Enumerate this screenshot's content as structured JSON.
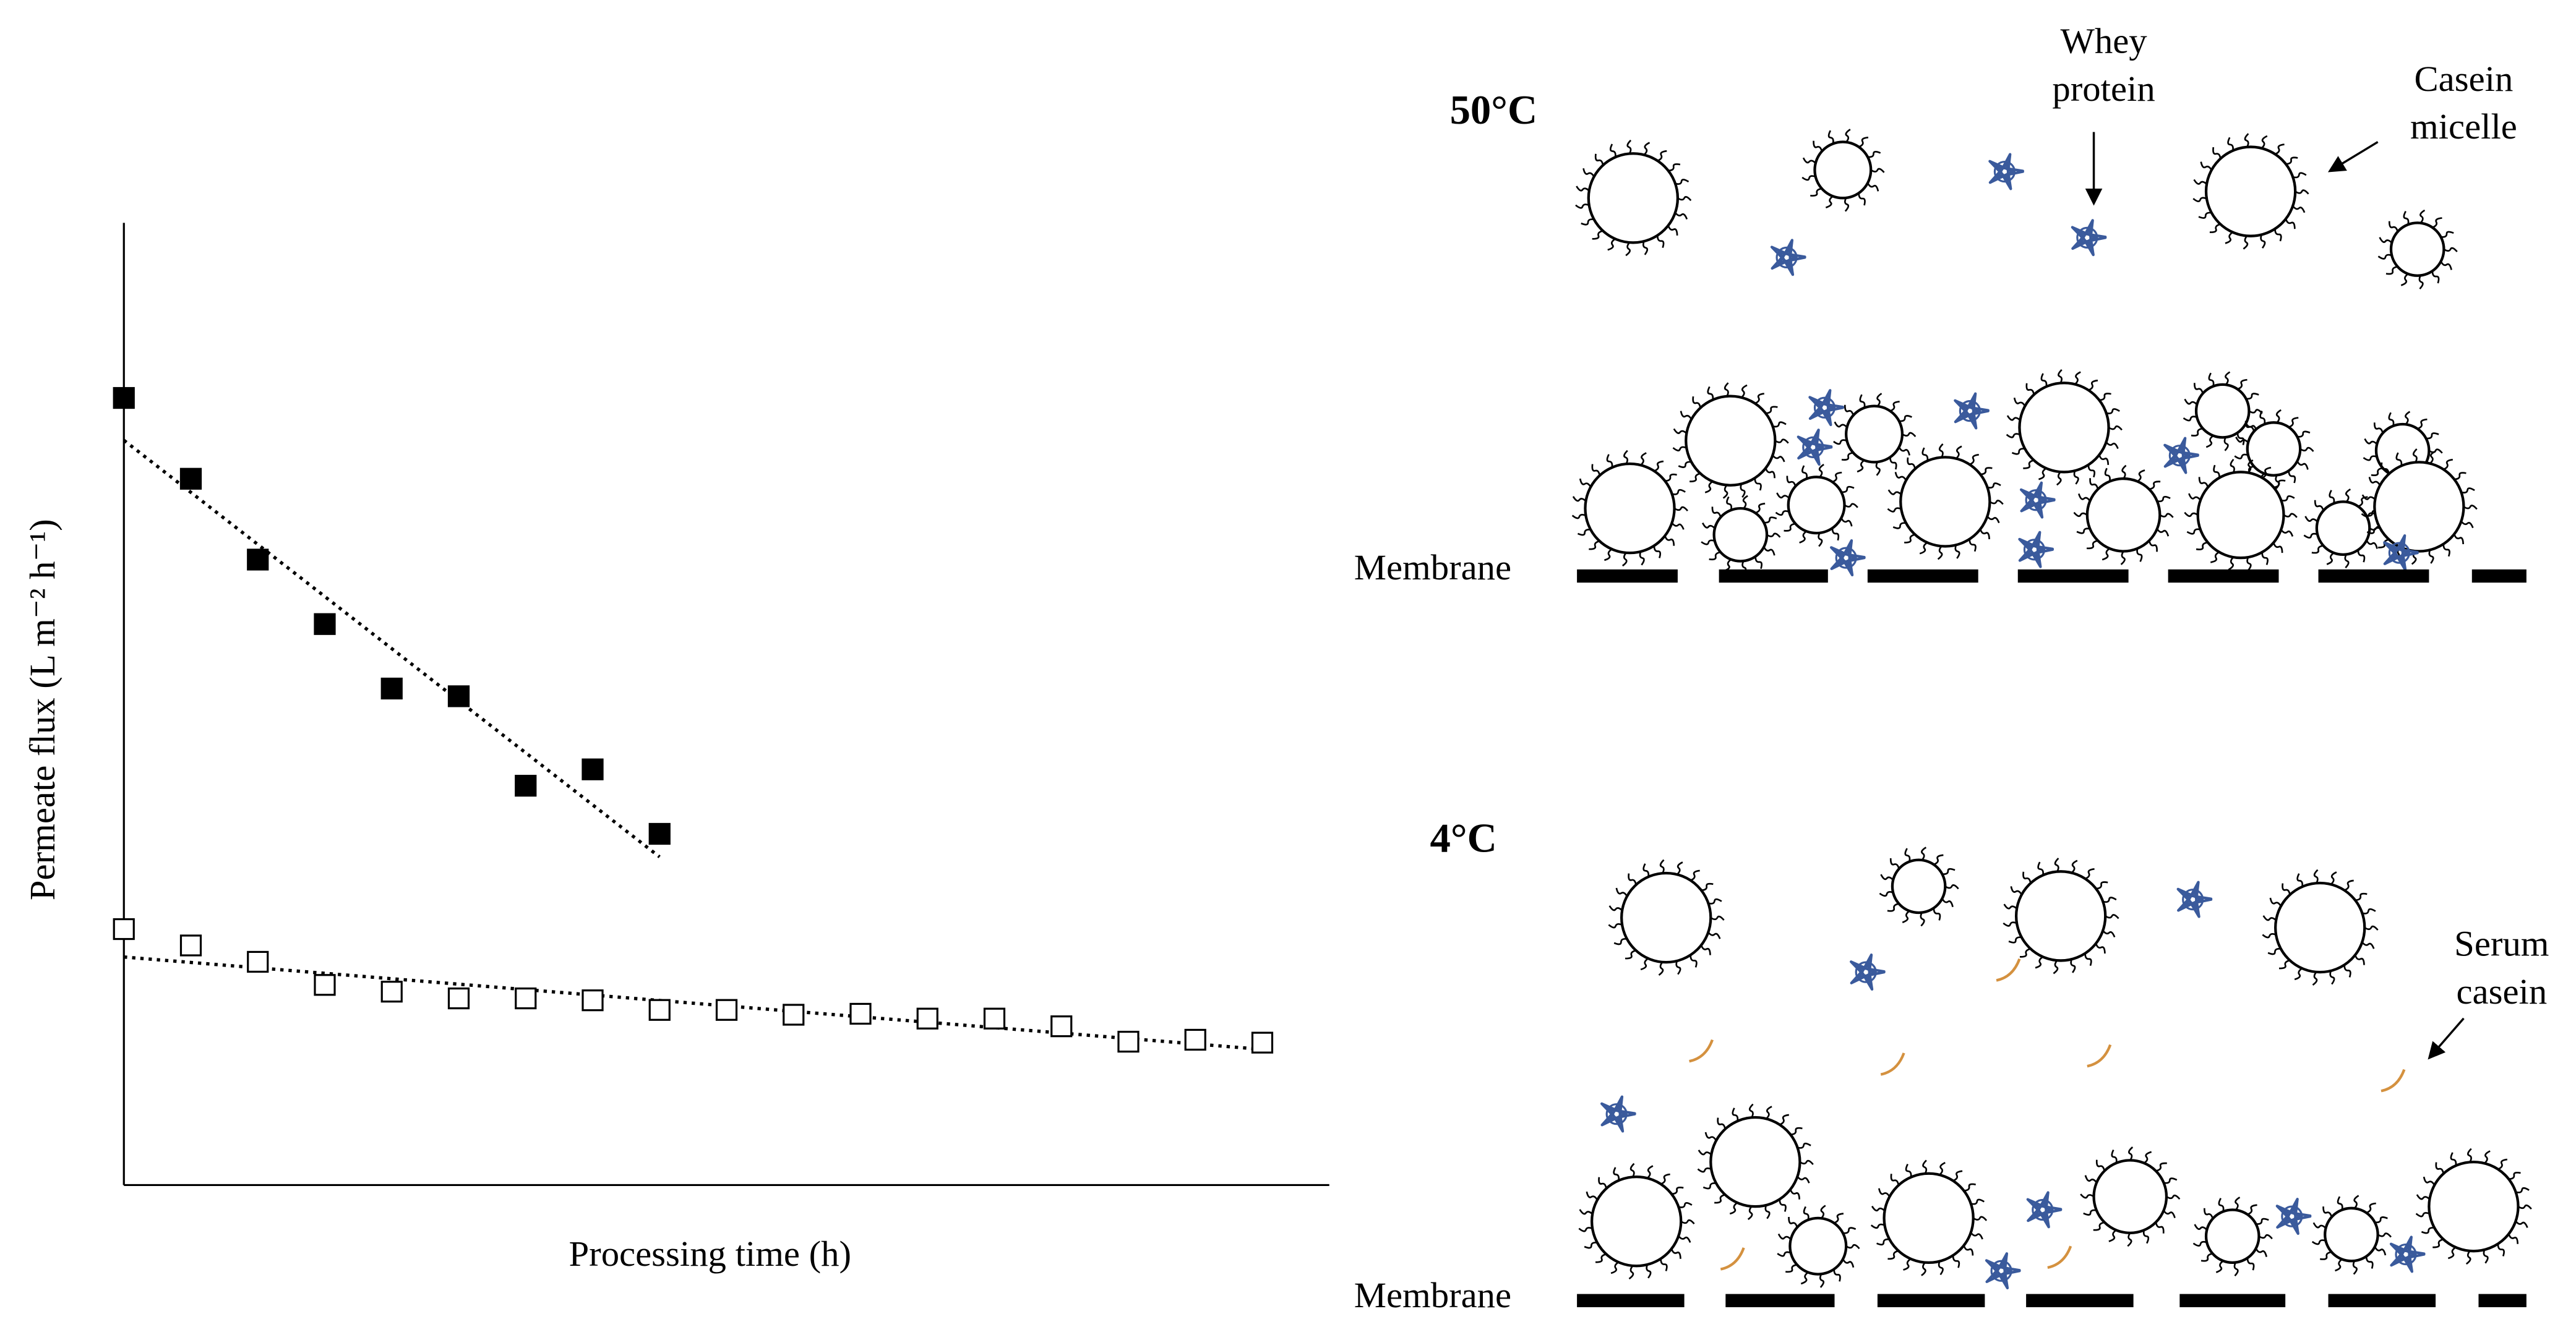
{
  "chart_data": {
    "type": "scatter",
    "xlabel": "Processing time (h)",
    "ylabel": "Permeate flux (L m⁻² h⁻¹)",
    "xlim": [
      0,
      18
    ],
    "ylim": [
      0,
      100
    ],
    "series": [
      {
        "color": "#000000",
        "fill": "#000000",
        "x": [
          0,
          1,
          2,
          3,
          4,
          5,
          6,
          7,
          8
        ],
        "values": [
          81.8,
          73.4,
          65.0,
          58.3,
          51.6,
          50.8,
          41.5,
          43.2,
          36.5
        ],
        "trend": {
          "x": [
            0,
            8
          ],
          "values": [
            77.4,
            34.1
          ]
        }
      },
      {
        "color": "#000000",
        "fill": "#ffffff",
        "x": [
          0,
          1,
          2,
          3,
          4,
          5,
          6,
          7,
          8,
          9,
          10,
          11,
          12,
          13,
          14,
          15,
          16,
          17
        ],
        "values": [
          26.6,
          24.9,
          23.2,
          20.8,
          20.1,
          19.4,
          19.4,
          19.2,
          18.2,
          18.2,
          17.7,
          17.8,
          17.3,
          17.3,
          16.5,
          14.9,
          15.1,
          14.8
        ],
        "trend": {
          "x": [
            0,
            17
          ],
          "values": [
            23.7,
            14.1
          ]
        }
      }
    ]
  },
  "diagram": {
    "panels": [
      {
        "temperature": "50°C",
        "membrane": "Membrane"
      },
      {
        "temperature": "4°C",
        "membrane": "Membrane"
      }
    ],
    "labels": {
      "whey": [
        "Whey",
        "protein"
      ],
      "casein": [
        "Casein",
        "micelle"
      ],
      "serum": [
        "Serum",
        "casein"
      ]
    }
  }
}
